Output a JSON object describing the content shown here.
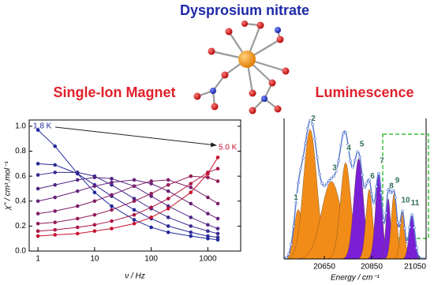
{
  "title": "Dysprosium nitrate",
  "panels": [
    "Single-Ion Magnet",
    "Luminescence"
  ],
  "chart_data": [
    {
      "type": "line",
      "x_label": "ν / Hz",
      "y_label": "χ'' / cm³.mol⁻¹",
      "annotations": [
        "1.8 K",
        "5.0 K"
      ],
      "log_x": true,
      "x": [
        1,
        2,
        5,
        10,
        20,
        50,
        100,
        200,
        500,
        1000,
        1500
      ],
      "series": [
        {
          "color": "#1f2a9c",
          "values": [
            0.97,
            0.84,
            0.62,
            0.47,
            0.36,
            0.25,
            0.19,
            0.15,
            0.12,
            0.1,
            0.09
          ]
        },
        {
          "color": "#2c2a97",
          "values": [
            0.7,
            0.69,
            0.62,
            0.53,
            0.44,
            0.33,
            0.26,
            0.2,
            0.15,
            0.12,
            0.11
          ]
        },
        {
          "color": "#3d2990",
          "values": [
            0.61,
            0.63,
            0.63,
            0.6,
            0.53,
            0.42,
            0.34,
            0.27,
            0.2,
            0.16,
            0.14
          ]
        },
        {
          "color": "#522686",
          "values": [
            0.5,
            0.53,
            0.57,
            0.59,
            0.58,
            0.52,
            0.44,
            0.36,
            0.27,
            0.21,
            0.18
          ]
        },
        {
          "color": "#67237a",
          "values": [
            0.4,
            0.43,
            0.48,
            0.52,
            0.55,
            0.57,
            0.54,
            0.48,
            0.38,
            0.3,
            0.26
          ]
        },
        {
          "color": "#7d1f6a",
          "values": [
            0.3,
            0.32,
            0.36,
            0.4,
            0.45,
            0.52,
            0.56,
            0.57,
            0.51,
            0.43,
            0.38
          ]
        },
        {
          "color": "#941b58",
          "values": [
            0.22,
            0.23,
            0.26,
            0.29,
            0.33,
            0.4,
            0.46,
            0.53,
            0.6,
            0.59,
            0.56
          ]
        },
        {
          "color": "#ad1745",
          "values": [
            0.16,
            0.17,
            0.19,
            0.21,
            0.24,
            0.29,
            0.35,
            0.42,
            0.54,
            0.63,
            0.66
          ]
        },
        {
          "color": "#c81230",
          "values": [
            0.12,
            0.13,
            0.14,
            0.16,
            0.18,
            0.22,
            0.27,
            0.34,
            0.47,
            0.62,
            0.75
          ]
        }
      ],
      "xlim": [
        0.7,
        3800
      ],
      "xticks": [
        1,
        10,
        100,
        1000
      ],
      "ylim": [
        0,
        1.05
      ],
      "yticks": [
        {
          "value": 0,
          "label": "0.0"
        },
        0.2,
        0.4,
        0.6,
        0.8,
        {
          "value": 1,
          "label": "1.0"
        }
      ]
    },
    {
      "type": "spectrum",
      "x_label": "Energy / cm⁻¹",
      "xlim": [
        20480,
        21080
      ],
      "xticks": [
        20650,
        20850,
        21050
      ],
      "ylim": [
        0,
        1.05
      ],
      "peaks": [
        {
          "label": "1",
          "x": 20540,
          "height": 0.37,
          "width": 18,
          "color": "#f28c18"
        },
        {
          "label": "2",
          "x": 20590,
          "height": 0.97,
          "width": 28,
          "color": "#f28c18"
        },
        {
          "label": "3",
          "x": 20680,
          "height": 0.58,
          "width": 42,
          "color": "#f28c18"
        },
        {
          "label": "4",
          "x": 20740,
          "height": 0.72,
          "width": 22,
          "color": "#f28c18"
        },
        {
          "label": "5",
          "x": 20795,
          "height": 0.75,
          "width": 20,
          "color": "#7a1fd6"
        },
        {
          "label": "6",
          "x": 20840,
          "height": 0.52,
          "width": 14,
          "color": "#f28c18"
        },
        {
          "label": "7",
          "x": 20880,
          "height": 0.63,
          "width": 14,
          "color": "#7a1fd6"
        },
        {
          "label": "8",
          "x": 20920,
          "height": 0.45,
          "width": 10,
          "color": "#7a1fd6"
        },
        {
          "label": "9",
          "x": 20945,
          "height": 0.49,
          "width": 12,
          "color": "#f28c18"
        },
        {
          "label": "10",
          "x": 20980,
          "height": 0.35,
          "width": 10,
          "color": "#f28c18"
        },
        {
          "label": "11",
          "x": 21020,
          "height": 0.33,
          "width": 12,
          "color": "#7a1fd6"
        }
      ]
    }
  ]
}
